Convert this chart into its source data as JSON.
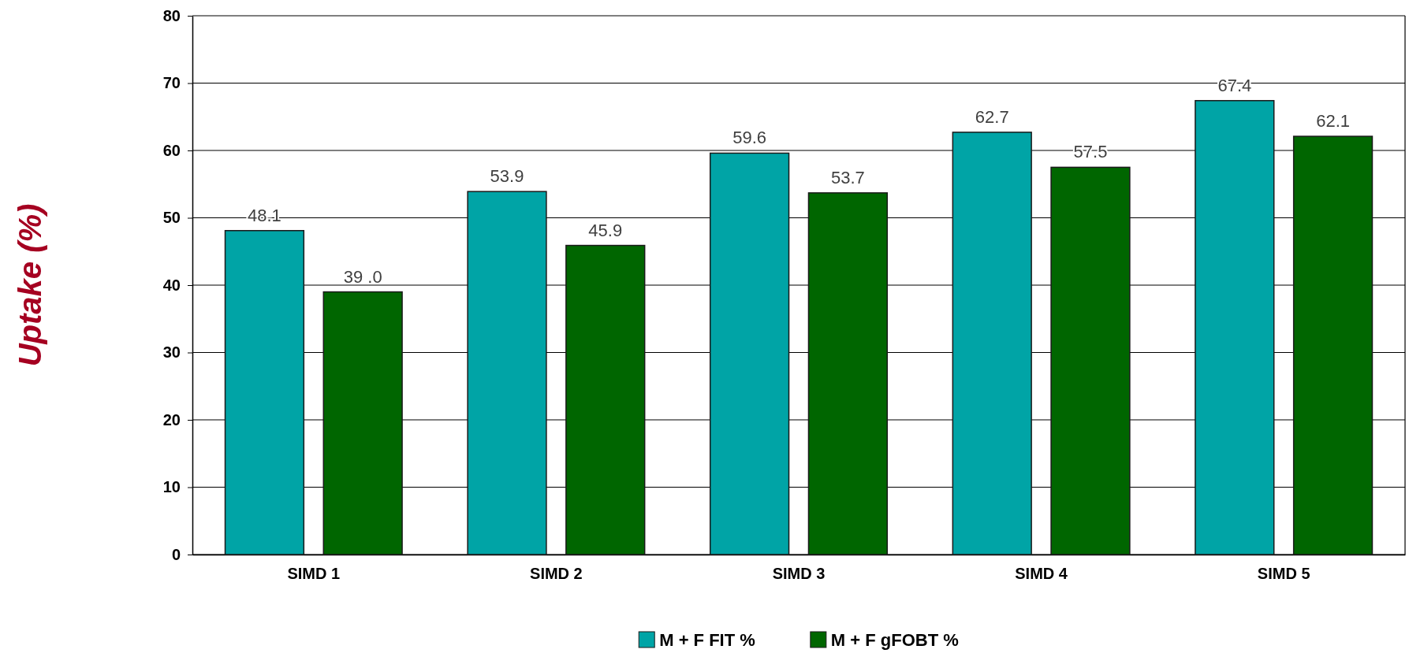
{
  "chart_data": {
    "type": "bar",
    "ylabel": "Uptake (%)",
    "categories": [
      "SIMD 1",
      "SIMD 2",
      "SIMD 3",
      "SIMD 4",
      "SIMD 5"
    ],
    "series": [
      {
        "name": "M + F FIT %",
        "color": "#00a4a6",
        "values": [
          48.1,
          53.9,
          59.6,
          62.7,
          67.4
        ],
        "value_labels": [
          "48.1",
          "53.9",
          "59.6",
          "62.7",
          "67.4"
        ]
      },
      {
        "name": "M + F gFOBT %",
        "color": "#006600",
        "values": [
          39.0,
          45.9,
          53.7,
          57.5,
          62.1
        ],
        "value_labels": [
          "39 .0",
          "45.9",
          "53.7",
          "57.5",
          "62.1"
        ]
      }
    ],
    "ylim": [
      0,
      80
    ],
    "yticks": [
      0,
      10,
      20,
      30,
      40,
      50,
      60,
      70,
      80
    ],
    "grid": "y",
    "legend": "bottom"
  }
}
